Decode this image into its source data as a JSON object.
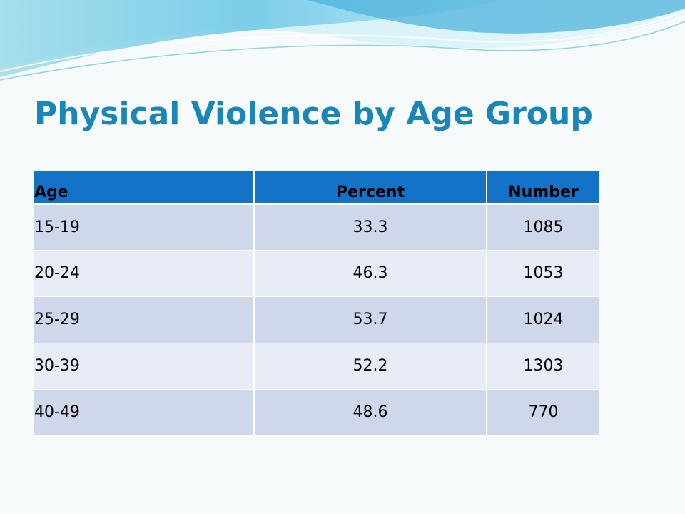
{
  "slide": {
    "title": "Physical Violence by Age Group"
  },
  "table": {
    "headers": [
      "Age",
      "Percent",
      "Number"
    ],
    "rows": [
      [
        "15-19",
        "33.3",
        "1085"
      ],
      [
        "20-24",
        "46.3",
        "1053"
      ],
      [
        "25-29",
        "53.7",
        "1024"
      ],
      [
        "30-39",
        "52.2",
        "1303"
      ],
      [
        "40-49",
        "48.6",
        "770"
      ]
    ]
  },
  "theme": {
    "title_color": "#1a86b8",
    "header_fill": "#1573c7",
    "row_fill_dark": "#cfd7ea",
    "row_fill_light": "#e8ecf6"
  }
}
